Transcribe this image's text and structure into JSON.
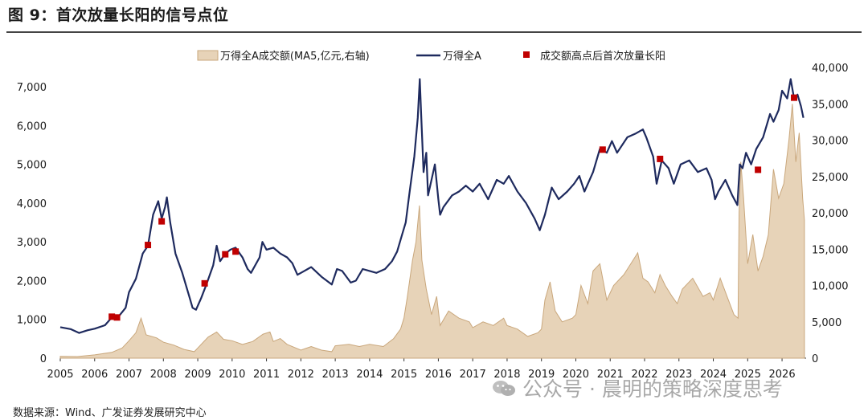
{
  "figure": {
    "title": "图 9：首次放量长阳的信号点位",
    "source": "数据来源：Wind、广发证券发展研究中心",
    "watermark": "公众号 · 晨明的策略深度思考"
  },
  "chart_data": {
    "type": "line",
    "title": "",
    "legend_position": "top",
    "x_ticks": [
      "2005",
      "2006",
      "2007",
      "2008",
      "2009",
      "2010",
      "2011",
      "2012",
      "2013",
      "2014",
      "2015",
      "2016",
      "2017",
      "2018",
      "2019",
      "2020",
      "2021",
      "2022",
      "2023",
      "2024",
      "2025",
      "2026"
    ],
    "x_range": [
      2005.0,
      2026.7
    ],
    "y_left": {
      "label": "",
      "ylim": [
        0,
        7500
      ],
      "ticks": [
        0,
        1000,
        2000,
        3000,
        4000,
        5000,
        6000,
        7000
      ],
      "tick_labels": [
        "0",
        "1,000",
        "2,000",
        "3,000",
        "4,000",
        "5,000",
        "6,000",
        "7,000"
      ]
    },
    "y_right": {
      "label": "",
      "ylim": [
        0,
        40000
      ],
      "ticks": [
        0,
        5000,
        10000,
        15000,
        20000,
        25000,
        30000,
        35000,
        40000
      ],
      "tick_labels": [
        "0",
        "5,000",
        "10,000",
        "15,000",
        "20,000",
        "25,000",
        "30,000",
        "35,000",
        "40,000"
      ]
    },
    "series": [
      {
        "name": "万得全A成交额(MA5,亿元,右轴)",
        "type": "area",
        "axis": "right",
        "color": "#c9a77c",
        "fill": "#e7d3b8",
        "points": [
          [
            2005.0,
            250
          ],
          [
            2005.5,
            220
          ],
          [
            2006.0,
            450
          ],
          [
            2006.5,
            800
          ],
          [
            2006.8,
            1400
          ],
          [
            2007.0,
            2400
          ],
          [
            2007.2,
            3500
          ],
          [
            2007.35,
            5500
          ],
          [
            2007.5,
            3200
          ],
          [
            2007.8,
            2800
          ],
          [
            2008.0,
            2200
          ],
          [
            2008.3,
            1800
          ],
          [
            2008.6,
            1200
          ],
          [
            2008.9,
            900
          ],
          [
            2009.0,
            1400
          ],
          [
            2009.3,
            2900
          ],
          [
            2009.55,
            3600
          ],
          [
            2009.75,
            2600
          ],
          [
            2010.0,
            2400
          ],
          [
            2010.3,
            1900
          ],
          [
            2010.6,
            2300
          ],
          [
            2010.9,
            3300
          ],
          [
            2011.1,
            3600
          ],
          [
            2011.2,
            2300
          ],
          [
            2011.4,
            2700
          ],
          [
            2011.6,
            1900
          ],
          [
            2011.9,
            1300
          ],
          [
            2012.0,
            1100
          ],
          [
            2012.3,
            1600
          ],
          [
            2012.6,
            1100
          ],
          [
            2012.9,
            900
          ],
          [
            2013.0,
            1700
          ],
          [
            2013.4,
            1900
          ],
          [
            2013.7,
            1600
          ],
          [
            2014.0,
            1900
          ],
          [
            2014.4,
            1600
          ],
          [
            2014.7,
            2700
          ],
          [
            2014.9,
            4000
          ],
          [
            2015.0,
            5500
          ],
          [
            2015.1,
            8500
          ],
          [
            2015.25,
            13500
          ],
          [
            2015.35,
            16000
          ],
          [
            2015.45,
            21000
          ],
          [
            2015.52,
            13500
          ],
          [
            2015.65,
            9500
          ],
          [
            2015.8,
            6000
          ],
          [
            2015.95,
            8500
          ],
          [
            2016.05,
            4500
          ],
          [
            2016.3,
            6500
          ],
          [
            2016.6,
            5500
          ],
          [
            2016.9,
            5000
          ],
          [
            2017.0,
            4200
          ],
          [
            2017.3,
            5000
          ],
          [
            2017.6,
            4500
          ],
          [
            2017.9,
            5500
          ],
          [
            2018.0,
            4500
          ],
          [
            2018.3,
            4000
          ],
          [
            2018.6,
            3000
          ],
          [
            2018.9,
            3500
          ],
          [
            2019.0,
            4000
          ],
          [
            2019.1,
            8000
          ],
          [
            2019.25,
            10500
          ],
          [
            2019.4,
            6500
          ],
          [
            2019.6,
            5000
          ],
          [
            2019.9,
            5500
          ],
          [
            2020.0,
            6000
          ],
          [
            2020.15,
            10000
          ],
          [
            2020.35,
            7500
          ],
          [
            2020.5,
            12000
          ],
          [
            2020.7,
            13000
          ],
          [
            2020.9,
            8000
          ],
          [
            2021.1,
            10000
          ],
          [
            2021.4,
            11500
          ],
          [
            2021.6,
            13000
          ],
          [
            2021.8,
            14500
          ],
          [
            2021.95,
            11000
          ],
          [
            2022.1,
            10500
          ],
          [
            2022.3,
            9000
          ],
          [
            2022.45,
            11500
          ],
          [
            2022.6,
            10000
          ],
          [
            2022.8,
            8500
          ],
          [
            2022.95,
            7500
          ],
          [
            2023.1,
            9500
          ],
          [
            2023.4,
            11000
          ],
          [
            2023.7,
            8500
          ],
          [
            2023.9,
            9000
          ],
          [
            2024.0,
            8000
          ],
          [
            2024.2,
            11000
          ],
          [
            2024.4,
            8500
          ],
          [
            2024.6,
            6000
          ],
          [
            2024.72,
            5500
          ],
          [
            2024.75,
            20000
          ],
          [
            2024.8,
            27000
          ],
          [
            2024.88,
            22000
          ],
          [
            2025.0,
            13000
          ],
          [
            2025.15,
            17000
          ],
          [
            2025.3,
            12000
          ],
          [
            2025.45,
            14000
          ],
          [
            2025.6,
            17000
          ],
          [
            2025.75,
            26000
          ],
          [
            2025.9,
            22000
          ],
          [
            2026.05,
            24000
          ],
          [
            2026.2,
            30000
          ],
          [
            2026.3,
            35000
          ],
          [
            2026.4,
            27000
          ],
          [
            2026.5,
            31000
          ],
          [
            2026.6,
            22000
          ],
          [
            2026.65,
            19000
          ]
        ]
      },
      {
        "name": "万得全A",
        "type": "line",
        "axis": "left",
        "color": "#1e2a5e",
        "points": [
          [
            2005.0,
            800
          ],
          [
            2005.3,
            750
          ],
          [
            2005.55,
            650
          ],
          [
            2005.8,
            720
          ],
          [
            2006.0,
            760
          ],
          [
            2006.3,
            850
          ],
          [
            2006.5,
            1050
          ],
          [
            2006.7,
            1080
          ],
          [
            2006.9,
            1300
          ],
          [
            2007.0,
            1700
          ],
          [
            2007.2,
            2050
          ],
          [
            2007.4,
            2700
          ],
          [
            2007.55,
            2900
          ],
          [
            2007.7,
            3700
          ],
          [
            2007.85,
            4050
          ],
          [
            2007.95,
            3600
          ],
          [
            2008.05,
            3900
          ],
          [
            2008.1,
            4150
          ],
          [
            2008.2,
            3500
          ],
          [
            2008.35,
            2700
          ],
          [
            2008.55,
            2200
          ],
          [
            2008.75,
            1600
          ],
          [
            2008.85,
            1300
          ],
          [
            2008.95,
            1250
          ],
          [
            2009.1,
            1550
          ],
          [
            2009.25,
            1900
          ],
          [
            2009.45,
            2400
          ],
          [
            2009.55,
            2900
          ],
          [
            2009.65,
            2500
          ],
          [
            2009.8,
            2700
          ],
          [
            2009.95,
            2800
          ],
          [
            2010.1,
            2850
          ],
          [
            2010.3,
            2600
          ],
          [
            2010.45,
            2300
          ],
          [
            2010.55,
            2200
          ],
          [
            2010.8,
            2600
          ],
          [
            2010.88,
            3000
          ],
          [
            2011.0,
            2800
          ],
          [
            2011.2,
            2850
          ],
          [
            2011.4,
            2700
          ],
          [
            2011.6,
            2600
          ],
          [
            2011.75,
            2450
          ],
          [
            2011.9,
            2150
          ],
          [
            2012.1,
            2250
          ],
          [
            2012.3,
            2350
          ],
          [
            2012.6,
            2100
          ],
          [
            2012.9,
            1900
          ],
          [
            2013.05,
            2300
          ],
          [
            2013.2,
            2250
          ],
          [
            2013.45,
            1950
          ],
          [
            2013.6,
            2000
          ],
          [
            2013.8,
            2300
          ],
          [
            2014.0,
            2250
          ],
          [
            2014.2,
            2200
          ],
          [
            2014.45,
            2300
          ],
          [
            2014.65,
            2500
          ],
          [
            2014.8,
            2750
          ],
          [
            2014.95,
            3200
          ],
          [
            2015.05,
            3500
          ],
          [
            2015.15,
            4200
          ],
          [
            2015.3,
            5200
          ],
          [
            2015.4,
            6200
          ],
          [
            2015.46,
            7200
          ],
          [
            2015.5,
            6300
          ],
          [
            2015.57,
            4800
          ],
          [
            2015.65,
            5300
          ],
          [
            2015.7,
            4200
          ],
          [
            2015.8,
            4600
          ],
          [
            2015.9,
            5000
          ],
          [
            2016.0,
            4100
          ],
          [
            2016.05,
            3700
          ],
          [
            2016.15,
            3900
          ],
          [
            2016.4,
            4200
          ],
          [
            2016.6,
            4300
          ],
          [
            2016.8,
            4450
          ],
          [
            2017.0,
            4300
          ],
          [
            2017.2,
            4500
          ],
          [
            2017.45,
            4100
          ],
          [
            2017.7,
            4600
          ],
          [
            2017.9,
            4500
          ],
          [
            2018.05,
            4700
          ],
          [
            2018.3,
            4300
          ],
          [
            2018.55,
            4000
          ],
          [
            2018.8,
            3600
          ],
          [
            2018.95,
            3300
          ],
          [
            2019.1,
            3700
          ],
          [
            2019.3,
            4400
          ],
          [
            2019.5,
            4100
          ],
          [
            2019.75,
            4300
          ],
          [
            2019.95,
            4500
          ],
          [
            2020.1,
            4700
          ],
          [
            2020.25,
            4300
          ],
          [
            2020.5,
            4800
          ],
          [
            2020.7,
            5400
          ],
          [
            2020.9,
            5300
          ],
          [
            2021.05,
            5600
          ],
          [
            2021.2,
            5300
          ],
          [
            2021.5,
            5700
          ],
          [
            2021.75,
            5800
          ],
          [
            2021.95,
            5900
          ],
          [
            2022.05,
            5700
          ],
          [
            2022.25,
            5200
          ],
          [
            2022.35,
            4500
          ],
          [
            2022.5,
            5100
          ],
          [
            2022.7,
            4900
          ],
          [
            2022.85,
            4500
          ],
          [
            2023.05,
            5000
          ],
          [
            2023.3,
            5100
          ],
          [
            2023.55,
            4800
          ],
          [
            2023.8,
            4900
          ],
          [
            2023.95,
            4600
          ],
          [
            2024.05,
            4100
          ],
          [
            2024.15,
            4300
          ],
          [
            2024.35,
            4600
          ],
          [
            2024.55,
            4200
          ],
          [
            2024.7,
            3950
          ],
          [
            2024.77,
            5000
          ],
          [
            2024.85,
            4900
          ],
          [
            2024.95,
            5300
          ],
          [
            2025.1,
            5000
          ],
          [
            2025.25,
            5400
          ],
          [
            2025.45,
            5700
          ],
          [
            2025.65,
            6300
          ],
          [
            2025.75,
            6100
          ],
          [
            2025.9,
            6400
          ],
          [
            2026.0,
            6900
          ],
          [
            2026.15,
            6700
          ],
          [
            2026.25,
            7200
          ],
          [
            2026.35,
            6700
          ],
          [
            2026.45,
            6800
          ],
          [
            2026.55,
            6500
          ],
          [
            2026.62,
            6200
          ]
        ]
      },
      {
        "name": "成交额高点后首次放量长阳",
        "type": "scatter",
        "axis": "left",
        "color": "#c00000",
        "points": [
          [
            2006.5,
            1070
          ],
          [
            2006.65,
            1050
          ],
          [
            2007.55,
            2920
          ],
          [
            2007.95,
            3530
          ],
          [
            2009.2,
            1930
          ],
          [
            2009.8,
            2680
          ],
          [
            2010.1,
            2750
          ],
          [
            2020.78,
            5380
          ],
          [
            2022.45,
            5140
          ],
          [
            2025.3,
            4860
          ],
          [
            2026.35,
            6720
          ]
        ]
      }
    ]
  }
}
